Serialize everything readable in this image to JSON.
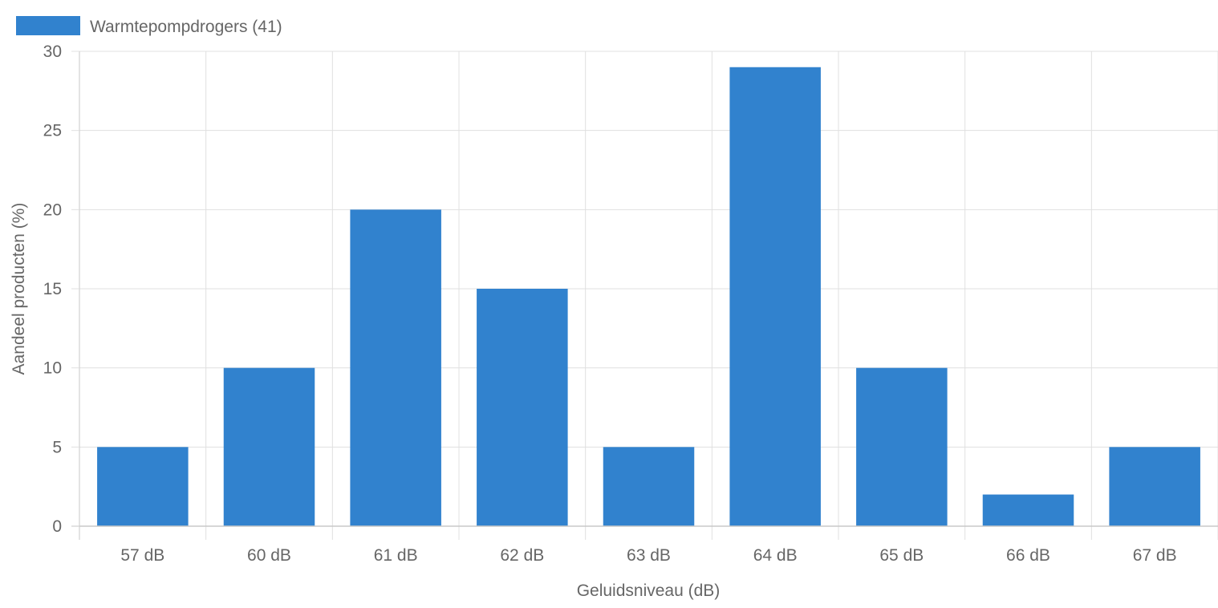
{
  "colors": {
    "bar": "#3182ce",
    "grid": "#e0e0e0",
    "axis": "#c8c8c8",
    "text": "#666666"
  },
  "chart_data": {
    "type": "bar",
    "title": "",
    "legend": {
      "position": "top-left",
      "entries": [
        {
          "label": "Warmtepompdrogers (41)",
          "color": "#3182ce"
        }
      ]
    },
    "categories": [
      "57 dB",
      "60 dB",
      "61 dB",
      "62 dB",
      "63 dB",
      "64 dB",
      "65 dB",
      "66 dB",
      "67 dB"
    ],
    "series": [
      {
        "name": "Warmtepompdrogers (41)",
        "values": [
          5,
          10,
          20,
          15,
          5,
          29,
          10,
          2,
          5
        ]
      }
    ],
    "xlabel": "Geluidsniveau (dB)",
    "ylabel": "Aandeel producten (%)",
    "ylim": [
      0,
      30
    ],
    "yticks": [
      0,
      5,
      10,
      15,
      20,
      25,
      30
    ],
    "grid": true
  }
}
